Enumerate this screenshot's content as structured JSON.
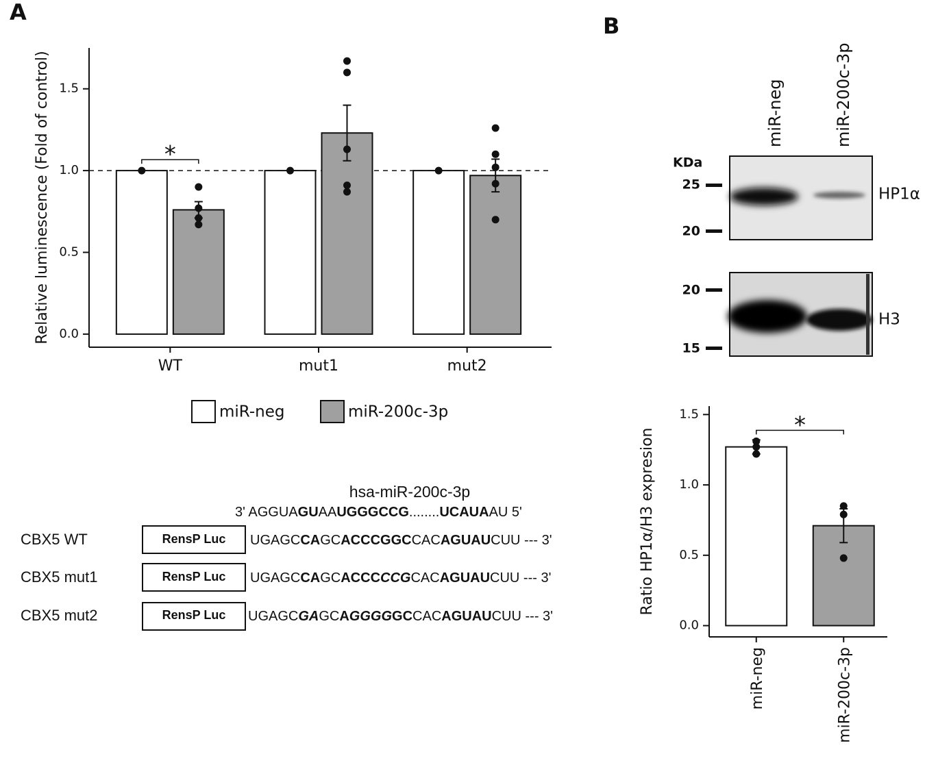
{
  "panel_labels": [
    "A",
    "B"
  ],
  "chart_data": [
    {
      "type": "bar",
      "ylabel": "Relative luminescence (Fold of control)",
      "categories": [
        "WT",
        "mut1",
        "mut2"
      ],
      "series": [
        {
          "name": "miR-neg",
          "color": "#ffffff",
          "values": [
            1,
            1,
            1
          ],
          "points": [
            [
              1
            ],
            [
              1
            ],
            [
              1
            ]
          ]
        },
        {
          "name": "miR-200c-3p",
          "color": "#a0a0a0",
          "values": [
            0.76,
            1.23,
            0.97
          ],
          "errors": [
            0.05,
            0.17,
            0.1
          ],
          "points": [
            [
              0.9,
              0.77,
              0.71,
              0.67
            ],
            [
              1.67,
              1.6,
              1.13,
              0.91,
              0.87
            ],
            [
              1.26,
              1.1,
              1.02,
              0.92,
              0.7
            ]
          ]
        }
      ],
      "ylim": [
        -0.08,
        1.75
      ],
      "yticks": [
        {
          "value": 0,
          "label": "0.0"
        },
        0.5,
        {
          "value": 1,
          "label": "1.0"
        },
        1.5
      ],
      "hline": 1,
      "significance": {
        "category": 0,
        "label": "*"
      }
    },
    {
      "type": "bar",
      "ylabel": "Ratio HP1α/H3 expresion",
      "categories": [
        "miR-neg",
        "miR-200c-3p"
      ],
      "series": [
        {
          "colors": [
            "#ffffff",
            "#a0a0a0"
          ],
          "values": [
            1.27,
            0.71
          ],
          "errors": [
            0.05,
            0.12
          ],
          "points": [
            [
              1.31,
              1.27,
              1.22
            ],
            [
              0.85,
              0.79,
              0.48
            ]
          ]
        }
      ],
      "ylim": [
        -0.08,
        1.56
      ],
      "yticks": [
        {
          "value": 0,
          "label": "0.0"
        },
        0.5,
        {
          "value": 1,
          "label": "1.0"
        },
        1.5
      ],
      "significance": {
        "label": "*"
      }
    }
  ],
  "blot": {
    "lanes": [
      "miR-neg",
      "miR-200c-3p"
    ],
    "unit": "KDa",
    "panels": [
      {
        "protein": "HP1α",
        "markers": [
          "25",
          "20"
        ]
      },
      {
        "protein": "H3",
        "markers": [
          "20",
          "15"
        ]
      }
    ]
  },
  "sequences": {
    "mirna": {
      "name": "hsa-miR-200c-3p",
      "segments": [
        "3' AGGUA",
        "GU",
        "AA",
        "UGGGCCG",
        "........",
        "UCAUA",
        "AU 5'"
      ]
    },
    "constructs": [
      {
        "name": "CBX5 WT",
        "reporter": "RensP Luc",
        "segments": [
          "UGAGC",
          "CA",
          "GC",
          "ACCCGGC",
          "CAC",
          "AGUAU",
          "CUU --- 3'"
        ]
      },
      {
        "name": "CBX5 mut1",
        "reporter": "RensP Luc",
        "segments": [
          "UGAGC",
          "CA",
          "GC",
          "ACCC",
          "CCG",
          "CAC",
          "AGUAU",
          "CUU --- 3'"
        ]
      },
      {
        "name": "CBX5 mut2",
        "reporter": "RensP Luc",
        "segments": [
          "UGAGC",
          "GA",
          "GC",
          "A",
          "GGGG",
          "GC",
          "CAC",
          "AGUAU",
          "CUU --- 3'"
        ]
      }
    ]
  }
}
